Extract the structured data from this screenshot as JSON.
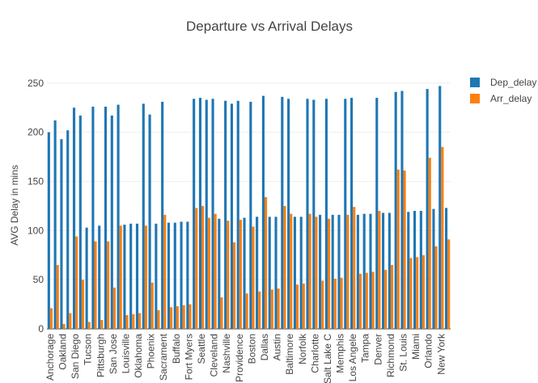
{
  "chart_data": {
    "type": "bar",
    "title": "Departure vs Arrival  Delays",
    "y_label": "AVG Delay in mins",
    "categories": [
      "Anchorage",
      null,
      "Oakland",
      null,
      "San Diego",
      null,
      "Tucson",
      null,
      "Pittsburgh",
      null,
      "San Jose",
      null,
      "Louisville",
      null,
      "Oklahoma",
      null,
      "Phoenix",
      null,
      "Sacrament",
      null,
      "Buffalo",
      null,
      "Fort Myers",
      null,
      "Seattle",
      null,
      "Cleveland",
      null,
      "Nashville",
      null,
      "Providence",
      null,
      "Boston",
      null,
      "Dallas",
      null,
      "Austin",
      null,
      "Baltimore",
      null,
      "Norfolk",
      null,
      "Charlotte",
      null,
      "Salt Lake C",
      null,
      "Memphis",
      null,
      "Los Angele",
      null,
      "Tampa",
      null,
      "Denver",
      null,
      "Richmond",
      null,
      "St. Louis",
      null,
      "Miami",
      null,
      "Orlando",
      null,
      "New York",
      null
    ],
    "series": [
      {
        "name": "Dep_delay",
        "color": "#1f77b4",
        "values": [
          200,
          212,
          193,
          202,
          225,
          217,
          103,
          226,
          105,
          226,
          217,
          228,
          106,
          107,
          107,
          229,
          218,
          107,
          231,
          108,
          108,
          109,
          109,
          234,
          235,
          233,
          234,
          112,
          232,
          229,
          232,
          113,
          231,
          114,
          237,
          114,
          114,
          236,
          234,
          114,
          114,
          234,
          233,
          116,
          234,
          116,
          116,
          234,
          235,
          116,
          117,
          117,
          235,
          118,
          118,
          241,
          242,
          119,
          120,
          120,
          244,
          122,
          247,
          123
        ]
      },
      {
        "name": "Arr_delay",
        "color": "#ff7f0e",
        "values": [
          21,
          65,
          5,
          16,
          94,
          50,
          7,
          89,
          9,
          89,
          42,
          105,
          14,
          15,
          16,
          105,
          47,
          19,
          116,
          22,
          23,
          24,
          25,
          123,
          125,
          113,
          117,
          32,
          110,
          88,
          111,
          36,
          104,
          38,
          134,
          40,
          41,
          125,
          117,
          45,
          46,
          117,
          114,
          49,
          112,
          51,
          52,
          116,
          124,
          56,
          57,
          58,
          120,
          60,
          65,
          162,
          161,
          72,
          73,
          75,
          174,
          84,
          185,
          91
        ]
      }
    ],
    "ylim": [
      0,
      263
    ],
    "yticks": [
      0,
      50,
      100,
      150,
      200,
      250
    ],
    "grid": true,
    "legend": "top-right"
  }
}
